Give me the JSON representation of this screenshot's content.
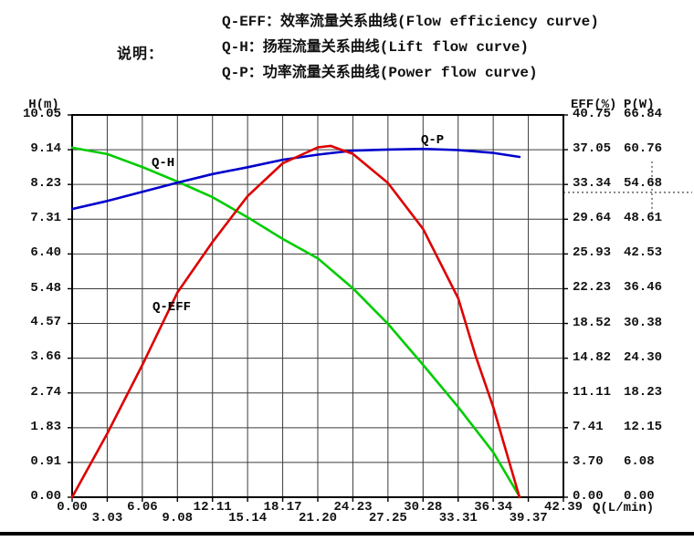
{
  "legend": {
    "title": "说明：",
    "lines": [
      "Q-EFF：效率流量关系曲线(Flow efficiency curve)",
      "Q-H：扬程流量关系曲线(Lift flow curve)",
      "Q-P：功率流量关系曲线(Power flow curve)"
    ]
  },
  "chart_data": {
    "type": "line",
    "grid": true,
    "x_axis": {
      "label": "Q(L/min)",
      "min": 0,
      "max": 42.39,
      "ticks": [
        "0.00",
        "3.03",
        "6.06",
        "9.08",
        "12.11",
        "15.14",
        "18.17",
        "21.20",
        "24.23",
        "27.25",
        "30.28",
        "33.31",
        "36.34",
        "39.37",
        "42.39"
      ]
    },
    "y_axes": [
      {
        "id": "H",
        "label": "H(m)",
        "side": "left",
        "min": 0,
        "max": 10.05,
        "ticks": [
          "10.05",
          "9.14",
          "8.23",
          "7.31",
          "6.40",
          "5.48",
          "4.57",
          "3.66",
          "2.74",
          "1.83",
          "0.91",
          "0.00"
        ]
      },
      {
        "id": "EFF",
        "label": "EFF(%)",
        "side": "right",
        "min": 0,
        "max": 40.75,
        "ticks": [
          "40.75",
          "37.05",
          "33.34",
          "29.64",
          "25.93",
          "22.23",
          "18.52",
          "14.82",
          "11.11",
          "7.41",
          "3.70",
          "0.00"
        ]
      },
      {
        "id": "P",
        "label": "P(W)",
        "side": "right",
        "min": 0,
        "max": 66.84,
        "ticks": [
          "66.84",
          "60.76",
          "54.68",
          "48.61",
          "42.53",
          "36.46",
          "30.38",
          "24.30",
          "18.23",
          "12.15",
          "6.08",
          "0.00"
        ]
      }
    ],
    "series": [
      {
        "name": "Q-H",
        "axis": "H",
        "color": "#00cc00",
        "points": [
          [
            0,
            9.19
          ],
          [
            3.03,
            9.02
          ],
          [
            6.06,
            8.68
          ],
          [
            9.08,
            8.3
          ],
          [
            12.11,
            7.89
          ],
          [
            15.14,
            7.36
          ],
          [
            18.17,
            6.79
          ],
          [
            21.2,
            6.28
          ],
          [
            24.23,
            5.49
          ],
          [
            27.25,
            4.56
          ],
          [
            30.28,
            3.48
          ],
          [
            33.31,
            2.37
          ],
          [
            36.34,
            1.18
          ],
          [
            38.6,
            0.02
          ]
        ]
      },
      {
        "name": "Q-P",
        "axis": "P",
        "color": "#0000cc",
        "points": [
          [
            0,
            50.4
          ],
          [
            3.03,
            51.8
          ],
          [
            6.06,
            53.4
          ],
          [
            9.08,
            55.0
          ],
          [
            12.11,
            56.5
          ],
          [
            15.14,
            57.7
          ],
          [
            18.17,
            59.0
          ],
          [
            21.2,
            59.9
          ],
          [
            24.23,
            60.6
          ],
          [
            27.25,
            60.8
          ],
          [
            30.28,
            60.9
          ],
          [
            33.31,
            60.7
          ],
          [
            36.34,
            60.2
          ],
          [
            38.6,
            59.5
          ]
        ]
      },
      {
        "name": "Q-EFF",
        "axis": "EFF",
        "color": "#dd0000",
        "points": [
          [
            0,
            0
          ],
          [
            3.03,
            6.8
          ],
          [
            6.06,
            14.1
          ],
          [
            9.08,
            21.8
          ],
          [
            12.11,
            27.2
          ],
          [
            15.14,
            32.1
          ],
          [
            18.17,
            35.6
          ],
          [
            21.2,
            37.3
          ],
          [
            22.3,
            37.45
          ],
          [
            24.23,
            36.6
          ],
          [
            27.25,
            33.5
          ],
          [
            30.28,
            28.6
          ],
          [
            33.31,
            21.2
          ],
          [
            34.8,
            15.1
          ],
          [
            36.34,
            9.6
          ],
          [
            38.6,
            0.0
          ]
        ]
      }
    ],
    "annotation": {
      "type": "dashed-cross",
      "axis": "P",
      "p_value": 53.3
    }
  }
}
